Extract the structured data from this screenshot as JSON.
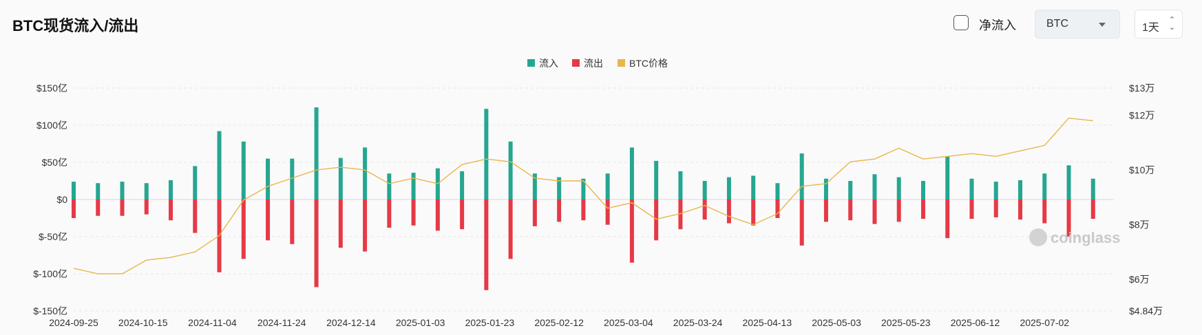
{
  "header": {
    "title": "BTC现货流入/流出"
  },
  "controls": {
    "net_flow_label": "净流入",
    "net_flow_checked": false,
    "coin_select": "BTC",
    "interval_select": "1天"
  },
  "watermark": "coinglass",
  "colors": {
    "inflow": "#26a690",
    "outflow": "#e63946",
    "price": "#e8b64c"
  },
  "chart_data": {
    "type": "bar",
    "title": "",
    "legend": {
      "position": "top-center",
      "items": [
        "流入",
        "流出",
        "BTC价格"
      ]
    },
    "grid": true,
    "x_ticks": [
      "2024-09-25",
      "2024-10-15",
      "2024-11-04",
      "2024-11-24",
      "2024-12-14",
      "2025-01-03",
      "2025-01-23",
      "2025-02-12",
      "2025-03-04",
      "2025-03-24",
      "2025-04-13",
      "2025-05-03",
      "2025-05-23",
      "2025-06-12",
      "2025-07-02"
    ],
    "x_range": [
      "2024-09-25",
      "2025-07-22"
    ],
    "y_left": {
      "ticks": [
        "$150亿",
        "$100亿",
        "$50亿",
        "$0",
        "$-50亿",
        "$-100亿",
        "$-150亿"
      ],
      "range": [
        -150,
        150
      ],
      "unit": "亿 USD"
    },
    "y_right": {
      "ticks": [
        "$13万",
        "$12万",
        "$10万",
        "$8万",
        "$6万",
        "$4.84万"
      ],
      "tick_values": [
        13,
        12,
        10,
        8,
        6,
        4.84
      ],
      "range": [
        4.84,
        13
      ],
      "unit": "万 USD"
    },
    "series": [
      {
        "name": "流入",
        "type": "bar",
        "sampling": "weekly",
        "dates": [
          "2024-09-25",
          "2024-10-02",
          "2024-10-09",
          "2024-10-16",
          "2024-10-23",
          "2024-10-30",
          "2024-11-06",
          "2024-11-13",
          "2024-11-20",
          "2024-11-27",
          "2024-12-04",
          "2024-12-11",
          "2024-12-18",
          "2024-12-25",
          "2025-01-01",
          "2025-01-08",
          "2025-01-15",
          "2025-01-22",
          "2025-01-29",
          "2025-02-05",
          "2025-02-12",
          "2025-02-19",
          "2025-02-26",
          "2025-03-05",
          "2025-03-12",
          "2025-03-19",
          "2025-03-26",
          "2025-04-02",
          "2025-04-09",
          "2025-04-16",
          "2025-04-23",
          "2025-04-30",
          "2025-05-07",
          "2025-05-14",
          "2025-05-21",
          "2025-05-28",
          "2025-06-04",
          "2025-06-11",
          "2025-06-18",
          "2025-06-25",
          "2025-07-02",
          "2025-07-09",
          "2025-07-16"
        ],
        "values": [
          24,
          22,
          24,
          22,
          26,
          45,
          92,
          78,
          55,
          55,
          124,
          56,
          70,
          35,
          36,
          42,
          38,
          122,
          78,
          35,
          30,
          28,
          35,
          70,
          52,
          38,
          25,
          30,
          32,
          22,
          62,
          28,
          25,
          34,
          30,
          25,
          58,
          28,
          24,
          26,
          35,
          46,
          28
        ]
      },
      {
        "name": "流出",
        "type": "bar",
        "sampling": "weekly",
        "dates": [
          "2024-09-25",
          "2024-10-02",
          "2024-10-09",
          "2024-10-16",
          "2024-10-23",
          "2024-10-30",
          "2024-11-06",
          "2024-11-13",
          "2024-11-20",
          "2024-11-27",
          "2024-12-04",
          "2024-12-11",
          "2024-12-18",
          "2024-12-25",
          "2025-01-01",
          "2025-01-08",
          "2025-01-15",
          "2025-01-22",
          "2025-01-29",
          "2025-02-05",
          "2025-02-12",
          "2025-02-19",
          "2025-02-26",
          "2025-03-05",
          "2025-03-12",
          "2025-03-19",
          "2025-03-26",
          "2025-04-02",
          "2025-04-09",
          "2025-04-16",
          "2025-04-23",
          "2025-04-30",
          "2025-05-07",
          "2025-05-14",
          "2025-05-21",
          "2025-05-28",
          "2025-06-04",
          "2025-06-11",
          "2025-06-18",
          "2025-06-25",
          "2025-07-02",
          "2025-07-09",
          "2025-07-16"
        ],
        "values": [
          -25,
          -22,
          -22,
          -20,
          -28,
          -45,
          -98,
          -80,
          -55,
          -60,
          -118,
          -65,
          -70,
          -38,
          -35,
          -42,
          -40,
          -122,
          -80,
          -36,
          -30,
          -28,
          -34,
          -85,
          -55,
          -40,
          -27,
          -32,
          -35,
          -25,
          -62,
          -30,
          -28,
          -33,
          -30,
          -26,
          -52,
          -26,
          -24,
          -27,
          -32,
          -50,
          -26
        ]
      },
      {
        "name": "BTC价格",
        "type": "line",
        "axis": "right",
        "sampling": "weekly",
        "dates": [
          "2024-09-25",
          "2024-10-02",
          "2024-10-09",
          "2024-10-16",
          "2024-10-23",
          "2024-10-30",
          "2024-11-06",
          "2024-11-13",
          "2024-11-20",
          "2024-11-27",
          "2024-12-04",
          "2024-12-11",
          "2024-12-18",
          "2024-12-25",
          "2025-01-01",
          "2025-01-08",
          "2025-01-15",
          "2025-01-22",
          "2025-01-29",
          "2025-02-05",
          "2025-02-12",
          "2025-02-19",
          "2025-02-26",
          "2025-03-05",
          "2025-03-12",
          "2025-03-19",
          "2025-03-26",
          "2025-04-02",
          "2025-04-09",
          "2025-04-16",
          "2025-04-23",
          "2025-04-30",
          "2025-05-07",
          "2025-05-14",
          "2025-05-21",
          "2025-05-28",
          "2025-06-04",
          "2025-06-11",
          "2025-06-18",
          "2025-06-25",
          "2025-07-02",
          "2025-07-09",
          "2025-07-16"
        ],
        "values": [
          6.4,
          6.2,
          6.2,
          6.7,
          6.8,
          7.0,
          7.6,
          8.9,
          9.4,
          9.7,
          10.0,
          10.1,
          10.0,
          9.5,
          9.7,
          9.5,
          10.2,
          10.4,
          10.3,
          9.7,
          9.6,
          9.6,
          8.6,
          8.8,
          8.2,
          8.4,
          8.7,
          8.3,
          8.0,
          8.4,
          9.4,
          9.5,
          10.3,
          10.4,
          10.8,
          10.4,
          10.5,
          10.6,
          10.5,
          10.7,
          10.9,
          11.9,
          11.8
        ]
      }
    ]
  }
}
